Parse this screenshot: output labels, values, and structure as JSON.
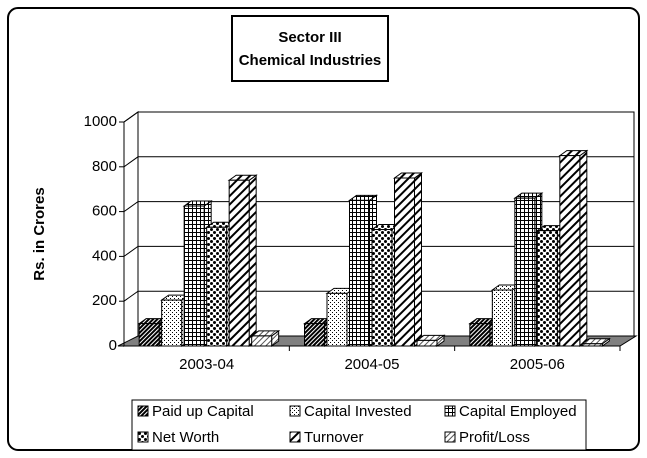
{
  "chart_data": {
    "type": "bar3d",
    "title": "Sector III",
    "subtitle": "Chemical Industries",
    "y_label": "Rs. in Crores",
    "categories": [
      "2003-04",
      "2004-05",
      "2005-06"
    ],
    "series": [
      {
        "name": "Paid up Capital",
        "values": [
          100,
          100,
          100
        ]
      },
      {
        "name": "Capital Invested",
        "values": [
          205,
          235,
          250
        ]
      },
      {
        "name": "Capital Employed",
        "values": [
          625,
          650,
          660
        ]
      },
      {
        "name": "Net Worth",
        "values": [
          530,
          520,
          515
        ]
      },
      {
        "name": "Turnover",
        "values": [
          740,
          750,
          850
        ]
      },
      {
        "name": "Profit/Loss",
        "values": [
          45,
          25,
          10
        ]
      }
    ],
    "ylim": [
      0,
      1000
    ],
    "yticks": [
      0,
      200,
      400,
      600,
      800,
      1000
    ],
    "grid": true,
    "legend": "bottom"
  }
}
